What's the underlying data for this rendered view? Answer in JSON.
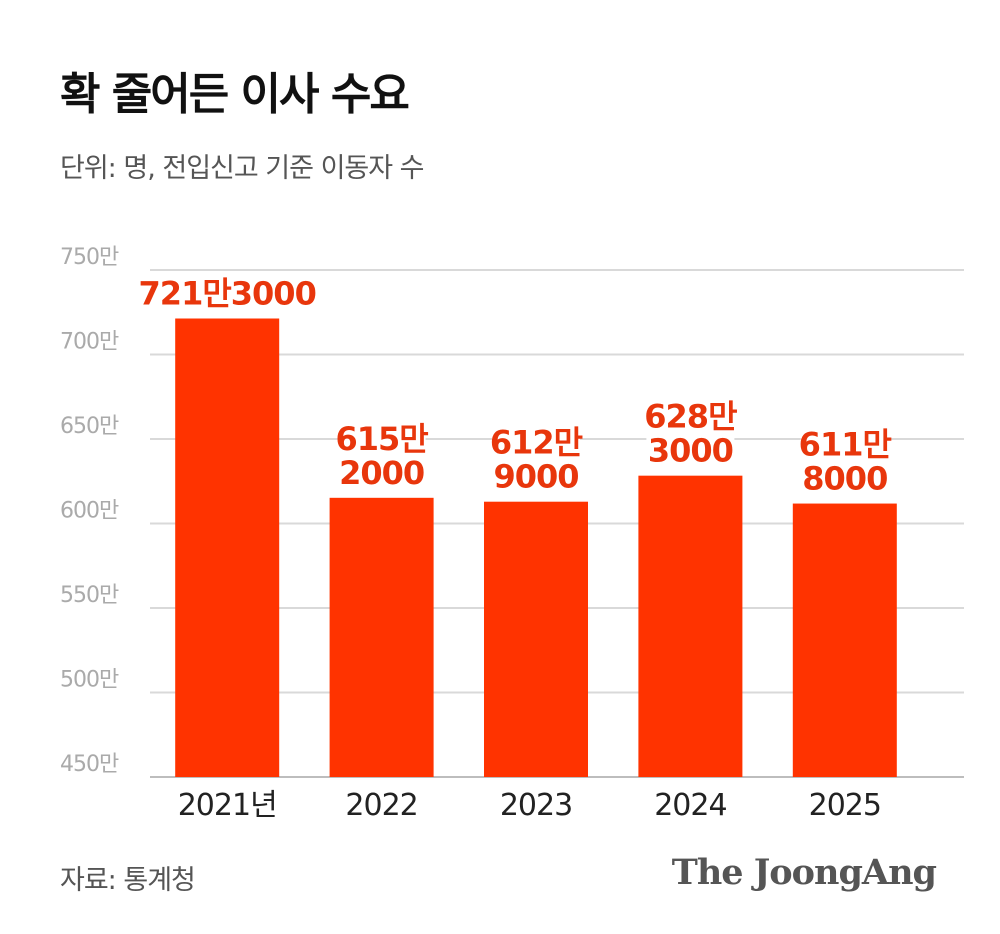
{
  "header": {
    "title": "확 줄어든 이사 수요",
    "subtitle": "단위: 명, 전입신고 기준 이동자 수"
  },
  "footer": {
    "source": "자료: 통계청",
    "logo_text": "The JoongAng"
  },
  "colors": {
    "bar": "#ff3300",
    "label": "#e8360c",
    "grid": "#d9d9d9"
  },
  "chart_data": {
    "type": "bar",
    "title": "확 줄어든 이사 수요",
    "unit": "명",
    "categories": [
      "2021년",
      "2022",
      "2023",
      "2024",
      "2025"
    ],
    "values": [
      7213000,
      6152000,
      6129000,
      6283000,
      6118000
    ],
    "data_labels": [
      [
        "721만3000"
      ],
      [
        "615만",
        "2000"
      ],
      [
        "612만",
        "9000"
      ],
      [
        "628만",
        "3000"
      ],
      [
        "611만",
        "8000"
      ]
    ],
    "ylim": [
      4500000,
      7500000
    ],
    "yticks": [
      4500000,
      5000000,
      5500000,
      6000000,
      6500000,
      7000000,
      7500000
    ],
    "ytick_labels": [
      "450만",
      "500만",
      "550만",
      "600만",
      "650만",
      "700만",
      "750만"
    ],
    "grid": true,
    "legend": "none"
  }
}
